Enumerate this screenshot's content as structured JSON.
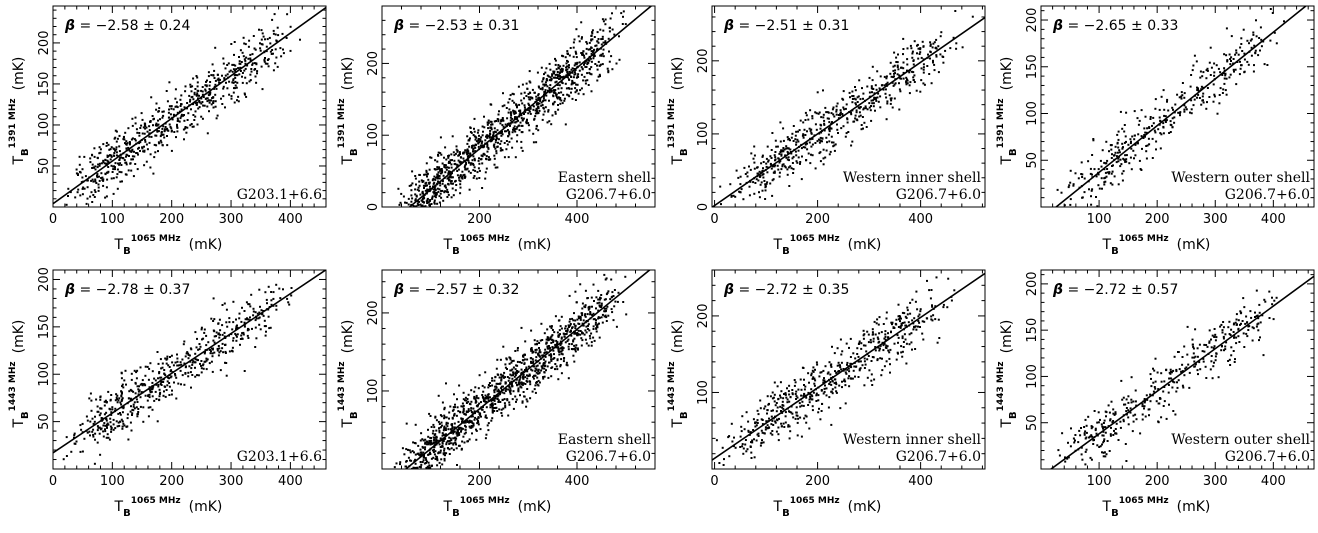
{
  "chart_data": [
    {
      "type": "scatter",
      "panel": "top-1",
      "region": [
        "G203.1+6.6"
      ],
      "beta": "−2.58 ± 0.24",
      "xlabel": {
        "main": "T",
        "sub": "B",
        "sup": "1065 MHz",
        "unit": "(mK)"
      },
      "ylabel": {
        "main": "T",
        "sub": "B",
        "sup": "1391 MHz",
        "unit": "(mK)"
      },
      "xlim": [
        0,
        460
      ],
      "ylim": [
        0,
        245
      ],
      "xticks": [
        0,
        100,
        200,
        300,
        400
      ],
      "yticks": [
        50,
        100,
        150,
        200
      ],
      "fit": {
        "slope": 0.52,
        "intercept": 4
      },
      "n_points": 700
    },
    {
      "type": "scatter",
      "panel": "top-2",
      "region": [
        "Eastern shell",
        "G206.7+6.0"
      ],
      "beta": "−2.53 ± 0.31",
      "xlabel": {
        "main": "T",
        "sub": "B",
        "sup": "1065 MHz",
        "unit": "(mK)"
      },
      "ylabel": {
        "main": "T",
        "sub": "B",
        "sup": "1391 MHz",
        "unit": "(mK)"
      },
      "xlim": [
        0,
        560
      ],
      "ylim": [
        0,
        280
      ],
      "xticks": [
        200,
        400
      ],
      "yticks": [
        0,
        100,
        200
      ],
      "fit": {
        "slope": 0.565,
        "intercept": -32
      },
      "n_points": 1200
    },
    {
      "type": "scatter",
      "panel": "top-3",
      "region": [
        "Western inner shell",
        "G206.7+6.0"
      ],
      "beta": "−2.51 ± 0.31",
      "xlabel": {
        "main": "T",
        "sub": "B",
        "sup": "1065 MHz",
        "unit": "(mK)"
      },
      "ylabel": {
        "main": "T",
        "sub": "B",
        "sup": "1391 MHz",
        "unit": "(mK)"
      },
      "xlim": [
        -5,
        525
      ],
      "ylim": [
        0,
        275
      ],
      "xticks": [
        0,
        200,
        400
      ],
      "yticks": [
        0,
        100,
        200
      ],
      "fit": {
        "slope": 0.49,
        "intercept": 2
      },
      "n_points": 600
    },
    {
      "type": "scatter",
      "panel": "top-4",
      "region": [
        "Western outer shell",
        "G206.7+6.0"
      ],
      "beta": "−2.65 ± 0.33",
      "xlabel": {
        "main": "T",
        "sub": "B",
        "sup": "1065 MHz",
        "unit": "(mK)"
      },
      "ylabel": {
        "main": "T",
        "sub": "B",
        "sup": "1391 MHz",
        "unit": "(mK)"
      },
      "xlim": [
        0,
        470
      ],
      "ylim": [
        0,
        215
      ],
      "xticks": [
        100,
        200,
        300,
        400
      ],
      "yticks": [
        50,
        100,
        150,
        200
      ],
      "fit": {
        "slope": 0.5,
        "intercept": -13
      },
      "n_points": 400
    },
    {
      "type": "scatter",
      "panel": "bottom-1",
      "region": [
        "G203.1+6.6"
      ],
      "beta": "−2.78 ± 0.37",
      "xlabel": {
        "main": "T",
        "sub": "B",
        "sup": "1065 MHz",
        "unit": "(mK)"
      },
      "ylabel": {
        "main": "T",
        "sub": "B",
        "sup": "1443 MHz",
        "unit": "(mK)"
      },
      "xlim": [
        0,
        460
      ],
      "ylim": [
        0,
        210
      ],
      "xticks": [
        0,
        100,
        200,
        300,
        400
      ],
      "yticks": [
        50,
        100,
        150,
        200
      ],
      "fit": {
        "slope": 0.42,
        "intercept": 17
      },
      "n_points": 600
    },
    {
      "type": "scatter",
      "panel": "bottom-2",
      "region": [
        "Eastern shell",
        "G206.7+6.0"
      ],
      "beta": "−2.57 ± 0.32",
      "xlabel": {
        "main": "T",
        "sub": "B",
        "sup": "1065 MHz",
        "unit": "(mK)"
      },
      "ylabel": {
        "main": "T",
        "sub": "B",
        "sup": "1443 MHz",
        "unit": "(mK)"
      },
      "xlim": [
        0,
        560
      ],
      "ylim": [
        0,
        255
      ],
      "xticks": [
        200,
        400
      ],
      "yticks": [
        100,
        200
      ],
      "fit": {
        "slope": 0.51,
        "intercept": -25
      },
      "n_points": 1200
    },
    {
      "type": "scatter",
      "panel": "bottom-3",
      "region": [
        "Western inner shell",
        "G206.7+6.0"
      ],
      "beta": "−2.72 ± 0.35",
      "xlabel": {
        "main": "T",
        "sub": "B",
        "sup": "1065 MHz",
        "unit": "(mK)"
      },
      "ylabel": {
        "main": "T",
        "sub": "B",
        "sup": "1443 MHz",
        "unit": "(mK)"
      },
      "xlim": [
        -5,
        525
      ],
      "ylim": [
        0,
        260
      ],
      "xticks": [
        0,
        200,
        400
      ],
      "yticks": [
        100,
        200
      ],
      "fit": {
        "slope": 0.46,
        "intercept": 14
      },
      "n_points": 600
    },
    {
      "type": "scatter",
      "panel": "bottom-4",
      "region": [
        "Western outer shell",
        "G206.7+6.0"
      ],
      "beta": "−2.72 ± 0.57",
      "xlabel": {
        "main": "T",
        "sub": "B",
        "sup": "1065 MHz",
        "unit": "(mK)"
      },
      "ylabel": {
        "main": "T",
        "sub": "B",
        "sup": "1443 MHz",
        "unit": "(mK)"
      },
      "xlim": [
        0,
        470
      ],
      "ylim": [
        0,
        215
      ],
      "xticks": [
        100,
        200,
        300,
        400
      ],
      "yticks": [
        50,
        100,
        150,
        200
      ],
      "fit": {
        "slope": 0.46,
        "intercept": -8
      },
      "n_points": 400
    }
  ]
}
